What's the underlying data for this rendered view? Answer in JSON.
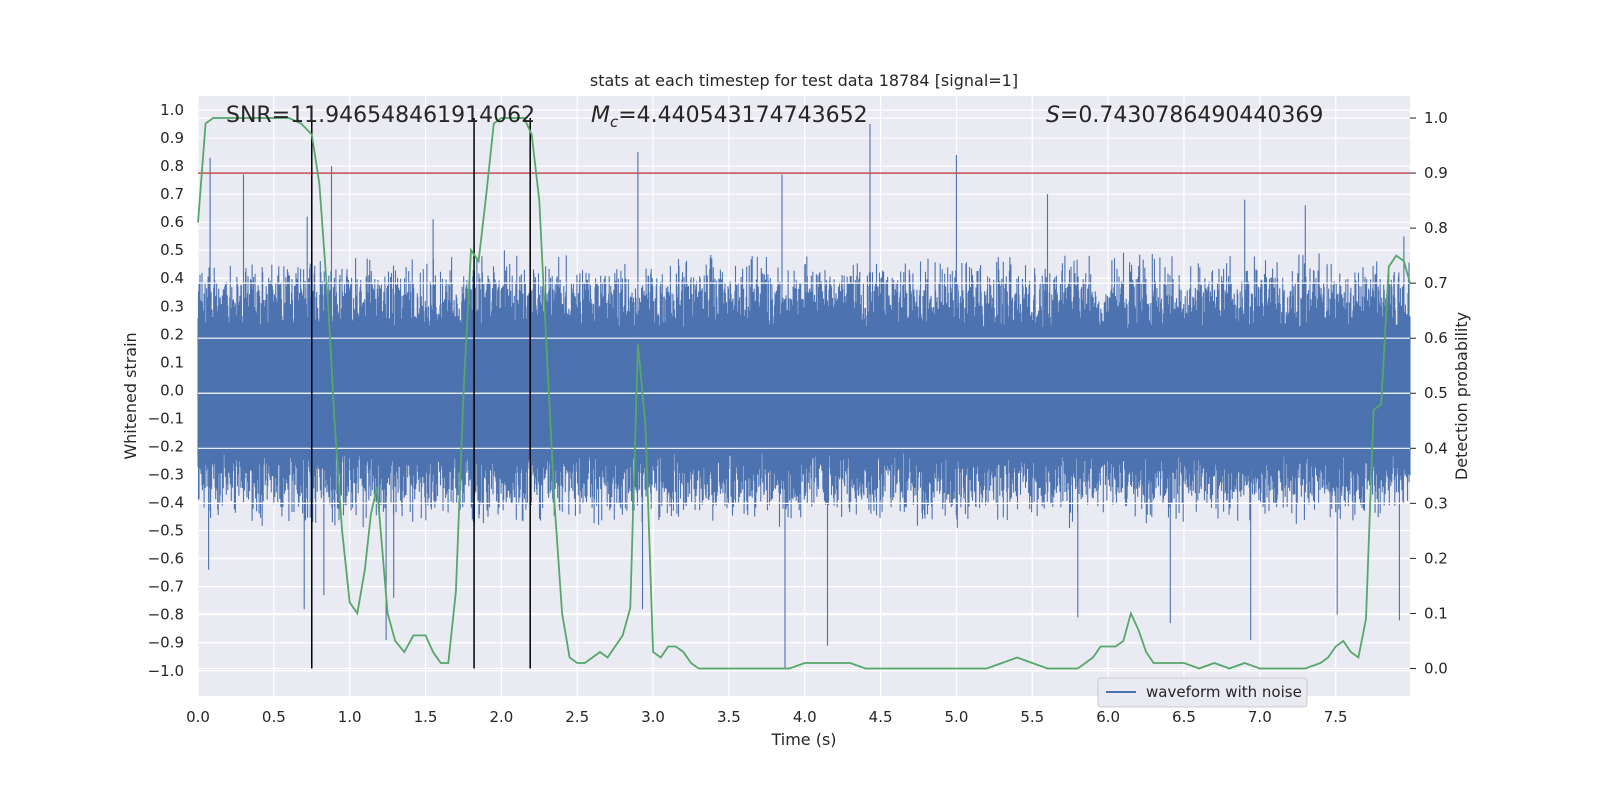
{
  "chart_data": {
    "type": "line",
    "title": "stats at each timestep for test data 18784 [signal=1]",
    "xlabel": "Time (s)",
    "ylabel_left": "Whitened strain",
    "ylabel_right": "Detection probability",
    "xlim": [
      0.0,
      7.99
    ],
    "ylim_left": [
      -1.09,
      1.05
    ],
    "ylim_right": [
      -0.05,
      1.04
    ],
    "x_ticks": [
      "0.0",
      "0.5",
      "1.0",
      "1.5",
      "2.0",
      "2.5",
      "3.0",
      "3.5",
      "4.0",
      "4.5",
      "5.0",
      "5.5",
      "6.0",
      "6.5",
      "7.0",
      "7.5"
    ],
    "y_left_ticks": [
      "1.0",
      "0.9",
      "0.8",
      "0.7",
      "0.6",
      "0.5",
      "0.4",
      "0.3",
      "0.2",
      "0.1",
      "0.0",
      "−0.1",
      "−0.2",
      "−0.3",
      "−0.4",
      "−0.5",
      "−0.6",
      "−0.7",
      "−0.8",
      "−0.9",
      "−1.0"
    ],
    "y_right_ticks": [
      "1.0",
      "0.9",
      "0.8",
      "0.7",
      "0.6",
      "0.5",
      "0.4",
      "0.3",
      "0.2",
      "0.1",
      "0.0"
    ],
    "grid": true,
    "legend": {
      "location": "lower-right",
      "entries": [
        "waveform with noise"
      ]
    },
    "annotations": {
      "snr": "SNR=11.946548461914062",
      "mc_symbol": "M",
      "mc_sub": "c",
      "mc_value": "=4.440543174743652",
      "s_symbol": "S",
      "s_value": "=0.7430786490440369"
    },
    "threshold": 0.9,
    "vlines": [
      0.75,
      1.82,
      2.19
    ],
    "waveform": {
      "name": "waveform with noise",
      "typical_positive_peak": 0.45,
      "typical_negative_peak": -0.45,
      "spikes": [
        [
          0.08,
          0.83
        ],
        [
          0.3,
          0.77
        ],
        [
          0.72,
          0.62
        ],
        [
          0.88,
          0.8
        ],
        [
          1.55,
          0.61
        ],
        [
          2.02,
          0.5
        ],
        [
          2.9,
          0.85
        ],
        [
          3.85,
          0.77
        ],
        [
          4.43,
          0.95
        ],
        [
          5.0,
          0.84
        ],
        [
          5.6,
          0.7
        ],
        [
          6.9,
          0.68
        ],
        [
          7.3,
          0.66
        ],
        [
          7.95,
          0.55
        ],
        [
          0.07,
          -0.64
        ],
        [
          0.7,
          -0.78
        ],
        [
          0.83,
          -0.73
        ],
        [
          1.24,
          -0.89
        ],
        [
          1.29,
          -0.74
        ],
        [
          2.93,
          -0.78
        ],
        [
          3.87,
          -0.99
        ],
        [
          4.15,
          -0.91
        ],
        [
          5.8,
          -0.81
        ],
        [
          6.41,
          -0.83
        ],
        [
          6.94,
          -0.89
        ],
        [
          7.51,
          -0.8
        ],
        [
          7.92,
          -0.82
        ]
      ]
    },
    "series": [
      {
        "name": "detection probability",
        "color": "#55a868",
        "x": [
          0.0,
          0.05,
          0.1,
          0.2,
          0.3,
          0.4,
          0.5,
          0.6,
          0.68,
          0.75,
          0.8,
          0.86,
          0.9,
          0.95,
          1.0,
          1.05,
          1.1,
          1.14,
          1.18,
          1.25,
          1.3,
          1.36,
          1.42,
          1.5,
          1.55,
          1.6,
          1.65,
          1.7,
          1.75,
          1.8,
          1.85,
          1.9,
          1.95,
          2.0,
          2.1,
          2.15,
          2.2,
          2.25,
          2.3,
          2.35,
          2.4,
          2.45,
          2.5,
          2.55,
          2.6,
          2.65,
          2.7,
          2.75,
          2.8,
          2.85,
          2.9,
          2.95,
          3.0,
          3.05,
          3.1,
          3.15,
          3.2,
          3.25,
          3.3,
          3.35,
          3.4,
          3.5,
          3.6,
          3.7,
          3.8,
          3.9,
          4.0,
          4.1,
          4.2,
          4.3,
          4.4,
          4.6,
          4.8,
          5.0,
          5.1,
          5.2,
          5.3,
          5.4,
          5.5,
          5.6,
          5.7,
          5.8,
          5.85,
          5.9,
          5.95,
          6.0,
          6.05,
          6.1,
          6.15,
          6.2,
          6.25,
          6.3,
          6.4,
          6.5,
          6.6,
          6.7,
          6.8,
          6.9,
          7.0,
          7.1,
          7.2,
          7.3,
          7.4,
          7.45,
          7.5,
          7.55,
          7.6,
          7.65,
          7.7,
          7.75,
          7.8,
          7.85,
          7.9,
          7.95,
          7.99
        ],
        "y": [
          0.81,
          0.99,
          1.0,
          1.0,
          1.0,
          1.0,
          1.0,
          1.0,
          0.99,
          0.97,
          0.88,
          0.65,
          0.45,
          0.25,
          0.12,
          0.1,
          0.18,
          0.28,
          0.33,
          0.1,
          0.05,
          0.03,
          0.06,
          0.06,
          0.03,
          0.01,
          0.01,
          0.14,
          0.5,
          0.76,
          0.74,
          0.86,
          0.99,
          1.0,
          1.0,
          1.0,
          0.97,
          0.85,
          0.57,
          0.3,
          0.1,
          0.02,
          0.01,
          0.01,
          0.02,
          0.03,
          0.02,
          0.04,
          0.06,
          0.11,
          0.59,
          0.44,
          0.03,
          0.02,
          0.04,
          0.04,
          0.03,
          0.01,
          0.0,
          0.0,
          0.0,
          0.0,
          0.0,
          0.0,
          0.0,
          0.0,
          0.01,
          0.01,
          0.01,
          0.01,
          0.0,
          0.0,
          0.0,
          0.0,
          0.0,
          0.0,
          0.01,
          0.02,
          0.01,
          0.0,
          0.0,
          0.0,
          0.01,
          0.02,
          0.04,
          0.04,
          0.04,
          0.05,
          0.1,
          0.07,
          0.03,
          0.01,
          0.01,
          0.01,
          0.0,
          0.01,
          0.0,
          0.01,
          0.0,
          0.0,
          0.0,
          0.0,
          0.01,
          0.02,
          0.04,
          0.05,
          0.03,
          0.02,
          0.09,
          0.47,
          0.48,
          0.73,
          0.75,
          0.74,
          0.7
        ]
      }
    ]
  }
}
